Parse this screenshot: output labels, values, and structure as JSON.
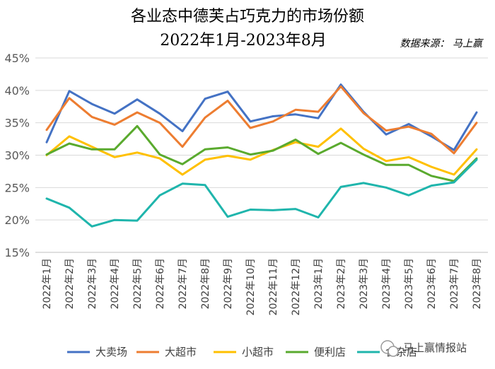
{
  "chart_data": {
    "type": "line",
    "title": "各业态中德芙占巧克力的市场份额",
    "subtitle": "2022年1月-2023年8月",
    "source": "数据来源： 马上赢",
    "watermark": "马上赢情报站",
    "ylim": [
      15,
      45
    ],
    "y_ticks": [
      "15%",
      "20%",
      "25%",
      "30%",
      "35%",
      "40%",
      "45%"
    ],
    "y_tick_values": [
      15,
      20,
      25,
      30,
      35,
      40,
      45
    ],
    "grid": "horizontal",
    "legend_position": "bottom",
    "categories": [
      "2022年1月",
      "2022年2月",
      "2022年3月",
      "2022年4月",
      "2022年5月",
      "2022年6月",
      "2022年7月",
      "2022年8月",
      "2022年9月",
      "2022年10月",
      "2022年11月",
      "2022年12月",
      "2023年1月",
      "2023年2月",
      "2023年3月",
      "2023年4月",
      "2023年5月",
      "2023年6月",
      "2023年7月",
      "2023年8月"
    ],
    "series": [
      {
        "name": "大卖场",
        "color": "#4472C4",
        "values": [
          32.0,
          39.9,
          37.9,
          36.4,
          38.6,
          36.4,
          33.7,
          38.7,
          39.8,
          35.2,
          36.0,
          36.3,
          35.7,
          40.9,
          36.7,
          33.2,
          34.8,
          32.9,
          30.8,
          36.6
        ]
      },
      {
        "name": "大超市",
        "color": "#ED7D31",
        "values": [
          33.9,
          38.8,
          35.9,
          34.7,
          36.6,
          35.0,
          31.3,
          35.8,
          38.4,
          34.2,
          35.2,
          37.0,
          36.7,
          40.6,
          36.5,
          33.8,
          34.4,
          33.3,
          30.3,
          35.0
        ]
      },
      {
        "name": "小超市",
        "color": "#FFC000",
        "values": [
          30.0,
          32.9,
          31.3,
          29.7,
          30.4,
          29.5,
          27.0,
          29.3,
          29.9,
          29.3,
          30.8,
          32.0,
          31.3,
          34.1,
          31.0,
          29.1,
          29.7,
          28.2,
          27.0,
          30.9
        ]
      },
      {
        "name": "便利店",
        "color": "#5AAA2E",
        "values": [
          30.1,
          31.8,
          30.9,
          30.9,
          34.5,
          30.1,
          28.6,
          30.9,
          31.2,
          30.1,
          30.7,
          32.4,
          30.2,
          31.9,
          30.1,
          28.5,
          28.5,
          26.8,
          26.0,
          29.5
        ]
      },
      {
        "name": "食杂店",
        "color": "#1FB5AC",
        "values": [
          23.3,
          21.9,
          19.0,
          20.0,
          19.9,
          23.8,
          25.6,
          25.4,
          20.5,
          21.6,
          21.5,
          21.7,
          20.4,
          25.1,
          25.7,
          25.0,
          23.8,
          25.3,
          25.8,
          29.3
        ]
      }
    ]
  }
}
